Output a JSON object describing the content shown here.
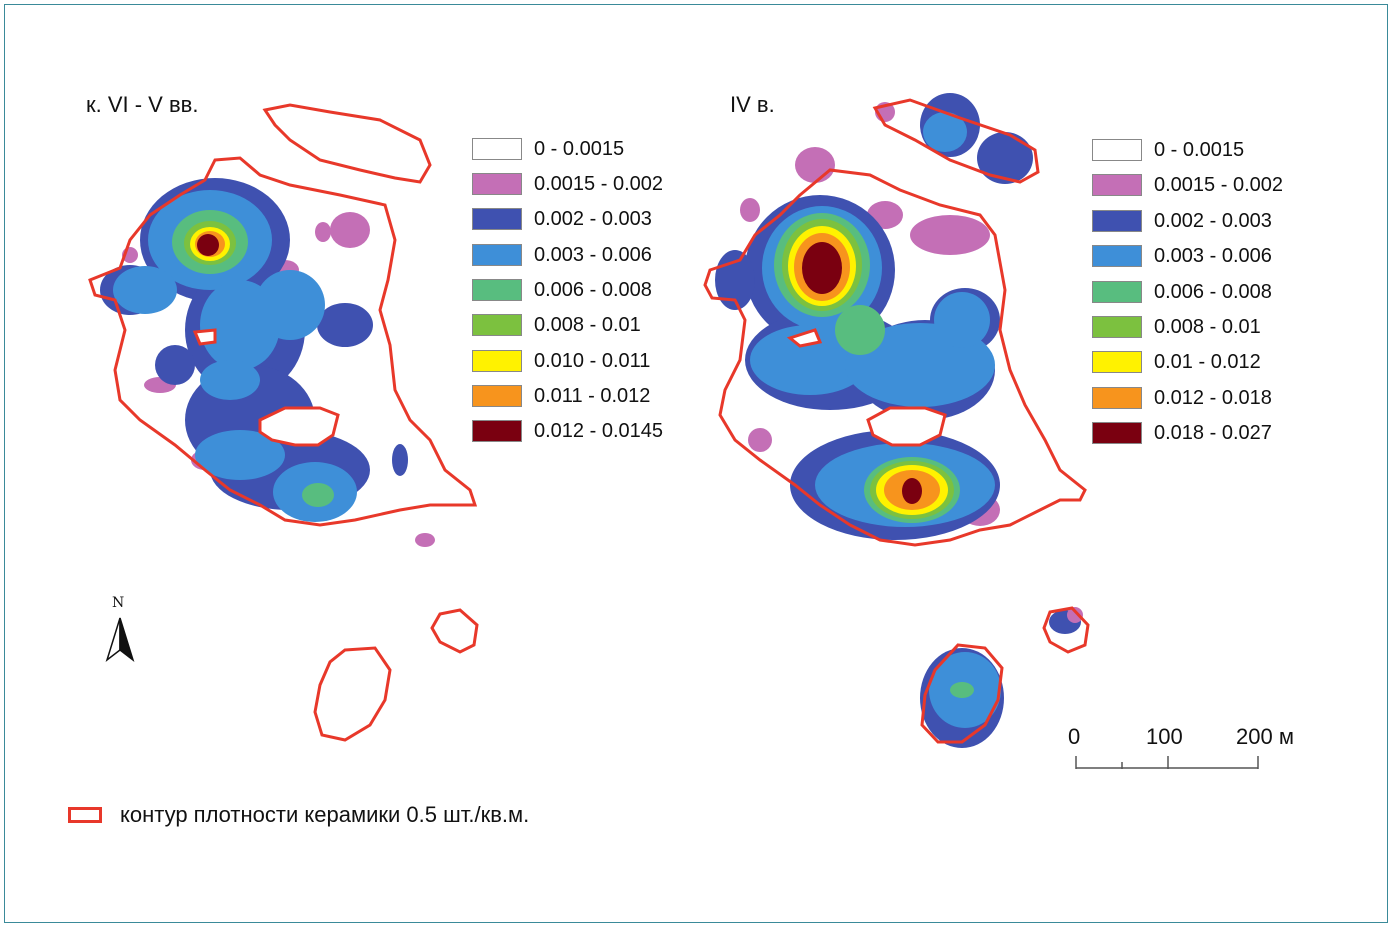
{
  "left_panel": {
    "title": "к. VI - V вв.",
    "legend": [
      {
        "label": "0 - 0.0015",
        "color": "#ffffff"
      },
      {
        "label": "0.0015 - 0.002",
        "color": "#c46fb6"
      },
      {
        "label": "0.002 - 0.003",
        "color": "#3f51b0"
      },
      {
        "label": "0.003 - 0.006",
        "color": "#3e8fd8"
      },
      {
        "label": "0.006 - 0.008",
        "color": "#58bd7f"
      },
      {
        "label": "0.008 - 0.01",
        "color": "#7cc13f"
      },
      {
        "label": "0.010 - 0.011",
        "color": "#fff200"
      },
      {
        "label": "0.011 - 0.012",
        "color": "#f7941d"
      },
      {
        "label": "0.012 - 0.0145",
        "color": "#7a0010"
      }
    ]
  },
  "right_panel": {
    "title": "IV в.",
    "legend": [
      {
        "label": "0 - 0.0015",
        "color": "#ffffff"
      },
      {
        "label": "0.0015 - 0.002",
        "color": "#c46fb6"
      },
      {
        "label": "0.002 - 0.003",
        "color": "#3f51b0"
      },
      {
        "label": "0.003 - 0.006",
        "color": "#3e8fd8"
      },
      {
        "label": "0.006 - 0.008",
        "color": "#58bd7f"
      },
      {
        "label": "0.008 - 0.01",
        "color": "#7cc13f"
      },
      {
        "label": "0.01 - 0.012",
        "color": "#fff200"
      },
      {
        "label": "0.012 - 0.018",
        "color": "#f7941d"
      },
      {
        "label": "0.018 - 0.027",
        "color": "#7a0010"
      }
    ]
  },
  "north_arrow": {
    "label": "N"
  },
  "scale_bar": {
    "tick_labels": [
      "0",
      "100",
      "200 м"
    ]
  },
  "contour_legend": {
    "label": "контур плотности керамики 0.5 шт./кв.м.",
    "color": "#e8382a"
  }
}
